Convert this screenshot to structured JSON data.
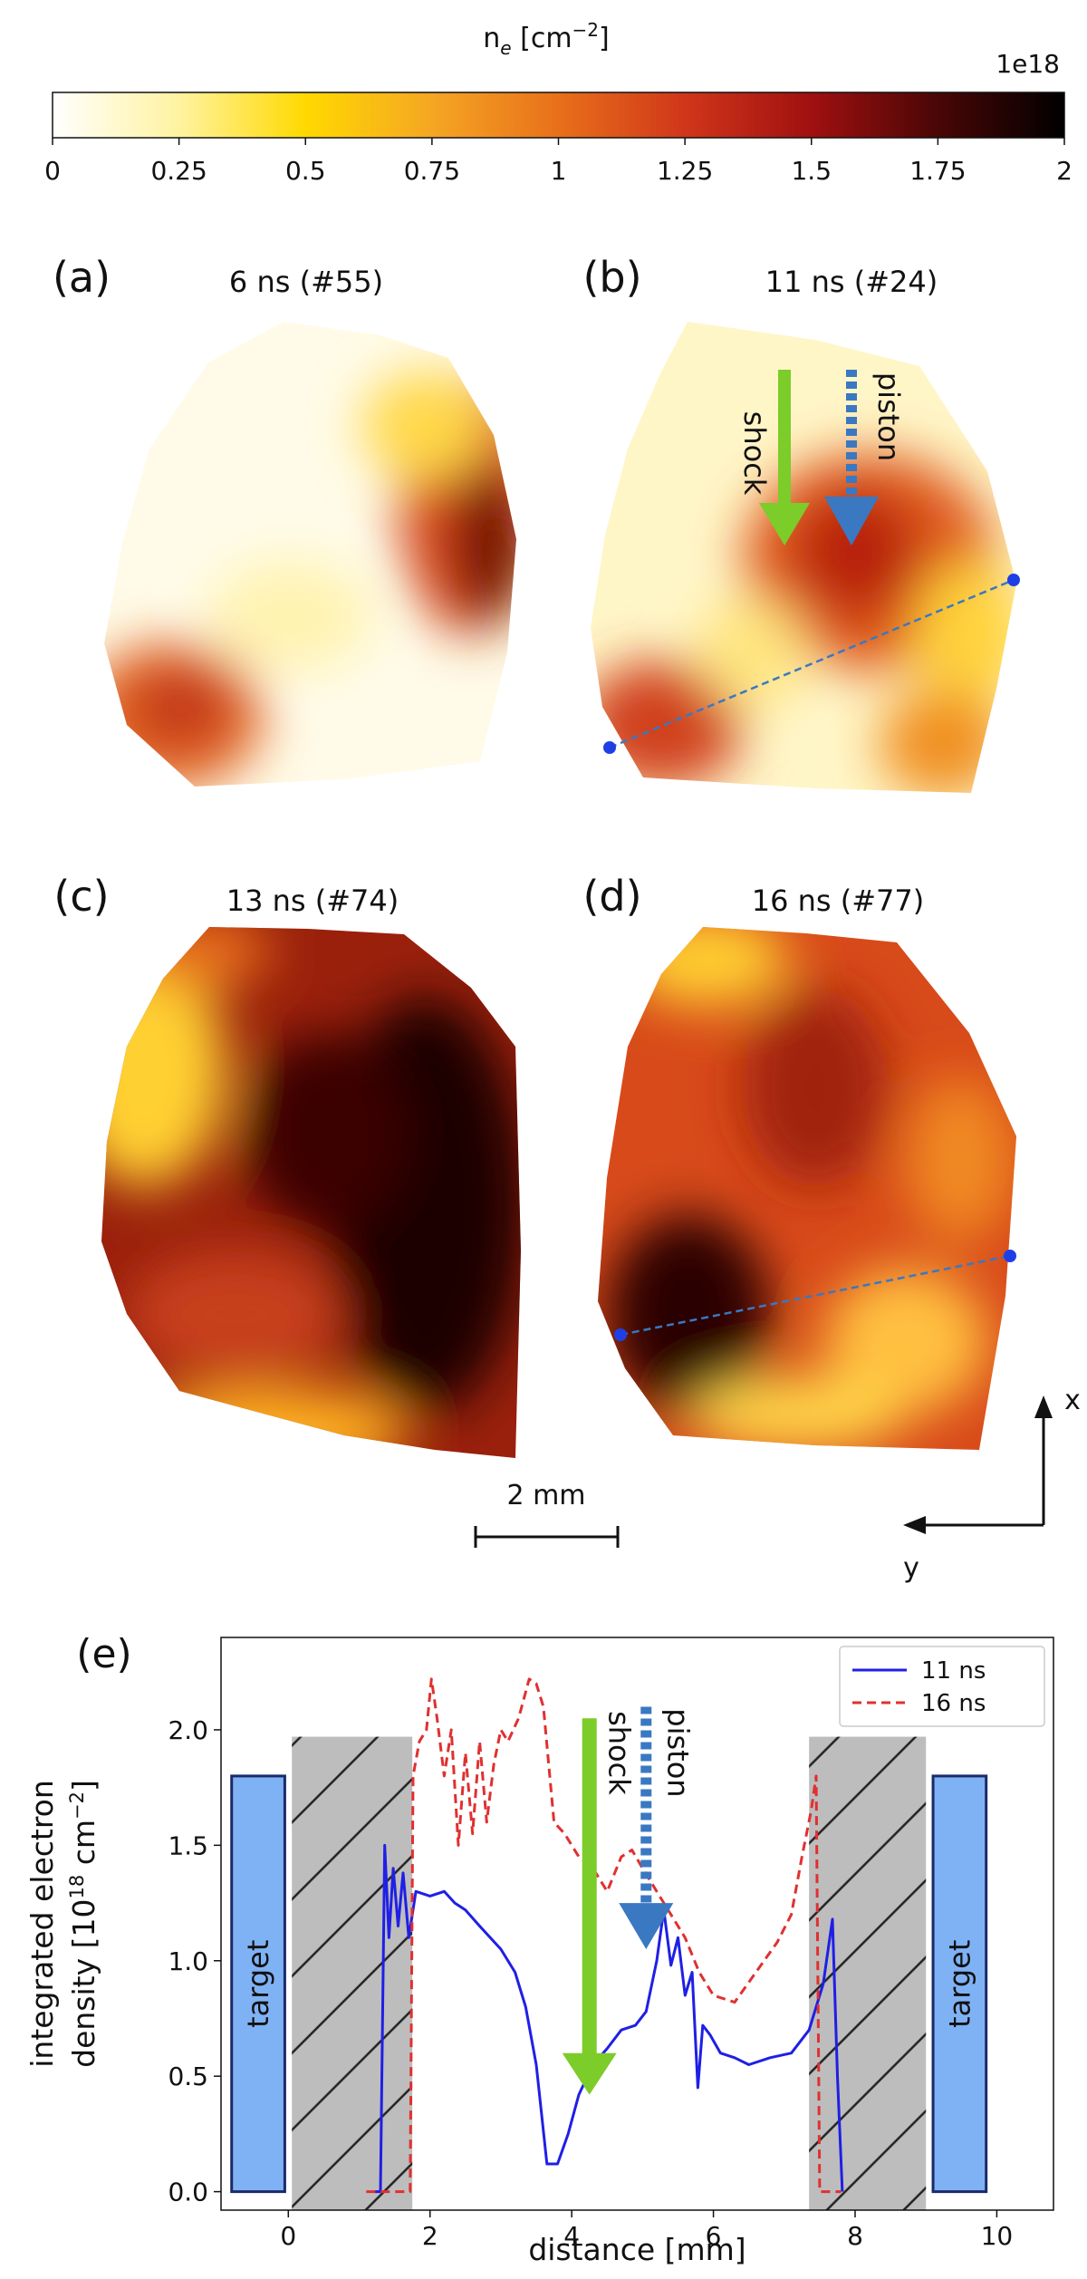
{
  "chart_data": [
    {
      "type": "colorbar",
      "title": [
        "n",
        "e",
        " [cm",
        "−2",
        "]"
      ],
      "offset_label": "1e18",
      "xlim": [
        0,
        2
      ],
      "xticks": [
        0,
        0.25,
        0.5,
        0.75,
        1,
        1.25,
        1.5,
        1.75,
        2
      ],
      "colormap": [
        "#ffffff",
        "#fff3a0",
        "#ffd900",
        "#f5a623",
        "#e8701a",
        "#d0361a",
        "#a01010",
        "#4a0606",
        "#000000"
      ],
      "panels": [
        {
          "label": "(a)",
          "title": "6 ns (#55)"
        },
        {
          "label": "(b)",
          "title": "11 ns (#24)"
        },
        {
          "label": "(c)",
          "title": "13 ns (#74)"
        },
        {
          "label": "(d)",
          "title": "16 ns (#77)"
        }
      ],
      "annotations": [
        "shock",
        "piston"
      ],
      "scale_bar": "2 mm",
      "axes": [
        "x",
        "y"
      ]
    },
    {
      "type": "line",
      "panel_label": "(e)",
      "xlabel": "distance [mm]",
      "ylabel": [
        "integrated electron",
        "density [10",
        "18",
        " cm",
        "−2",
        "]"
      ],
      "xlim": [
        -0.95,
        10.8
      ],
      "ylim": [
        -0.08,
        2.4
      ],
      "xticks": [
        0,
        2,
        4,
        6,
        8,
        10
      ],
      "yticks": [
        {
          "value": 0,
          "label": "0.0"
        },
        0.5,
        {
          "value": 1,
          "label": "1.0"
        },
        1.5,
        {
          "value": 2,
          "label": "2.0"
        }
      ],
      "legend": "upper right",
      "annotations": [
        "target",
        "target",
        "shock",
        "piston"
      ],
      "series": [
        {
          "name": "11 ns",
          "color": "#1f1fe6",
          "dash": false,
          "x": [
            1.22,
            1.3,
            1.36,
            1.42,
            1.48,
            1.55,
            1.62,
            1.7,
            1.8,
            2.0,
            2.2,
            2.35,
            2.5,
            2.7,
            3.0,
            3.2,
            3.35,
            3.5,
            3.65,
            3.8,
            3.95,
            4.1,
            4.3,
            4.5,
            4.7,
            4.9,
            5.05,
            5.2,
            5.3,
            5.4,
            5.5,
            5.6,
            5.7,
            5.78,
            5.85,
            5.95,
            6.1,
            6.3,
            6.5,
            6.8,
            7.1,
            7.35,
            7.55,
            7.68,
            7.75,
            7.82
          ],
          "values": [
            0.0,
            0.0,
            1.5,
            1.1,
            1.4,
            1.15,
            1.38,
            1.1,
            1.3,
            1.28,
            1.3,
            1.25,
            1.22,
            1.15,
            1.05,
            0.95,
            0.8,
            0.55,
            0.12,
            0.12,
            0.25,
            0.42,
            0.55,
            0.62,
            0.7,
            0.72,
            0.78,
            1.0,
            1.22,
            0.98,
            1.1,
            0.85,
            0.95,
            0.45,
            0.72,
            0.68,
            0.6,
            0.58,
            0.55,
            0.58,
            0.6,
            0.7,
            0.9,
            1.18,
            0.5,
            0.0
          ]
        },
        {
          "name": "16 ns",
          "color": "#e03030",
          "dash": true,
          "x": [
            1.1,
            1.72,
            1.76,
            1.85,
            1.95,
            2.02,
            2.1,
            2.2,
            2.3,
            2.4,
            2.5,
            2.6,
            2.7,
            2.8,
            2.9,
            3.0,
            3.1,
            3.25,
            3.4,
            3.5,
            3.6,
            3.75,
            3.9,
            4.1,
            4.3,
            4.5,
            4.7,
            4.85,
            5.0,
            5.2,
            5.4,
            5.6,
            5.8,
            6.0,
            6.3,
            6.6,
            6.9,
            7.1,
            7.25,
            7.38,
            7.45,
            7.5,
            7.8
          ],
          "values": [
            0.0,
            0.0,
            1.8,
            1.95,
            2.0,
            2.22,
            2.05,
            1.8,
            2.0,
            1.5,
            1.9,
            1.55,
            1.95,
            1.6,
            1.85,
            2.0,
            1.95,
            2.05,
            2.22,
            2.2,
            2.1,
            1.6,
            1.55,
            1.45,
            1.4,
            1.3,
            1.45,
            1.48,
            1.4,
            1.3,
            1.2,
            1.1,
            0.95,
            0.85,
            0.82,
            0.95,
            1.08,
            1.2,
            1.45,
            1.65,
            1.8,
            0.0,
            0.0
          ]
        }
      ]
    }
  ]
}
